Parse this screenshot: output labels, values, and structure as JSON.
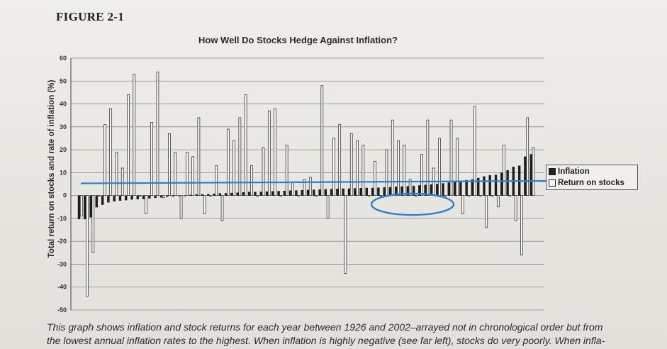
{
  "figure_label": "FIGURE 2-1",
  "caption_lines": [
    "This graph shows inflation and stock returns for each year between 1926 and 2002–arrayed not in chronological order but from",
    "the lowest annual inflation rates to the highest. When inflation is highly negative (see far left), stocks do very poorly. When infla-"
  ],
  "annotation_colors": {
    "reference_line": "#2f7fd0",
    "ellipse": "#2f7fd0"
  },
  "chart_data": {
    "type": "bar",
    "title": "How Well Do Stocks Hedge Against Inflation?",
    "ylabel": "Total return on stocks and rate of inflation (%)",
    "xlabel": "",
    "ylim": [
      -50,
      60
    ],
    "yticks": [
      60,
      50,
      40,
      30,
      20,
      10,
      0,
      -10,
      -20,
      -30,
      -40,
      -50
    ],
    "grid": true,
    "legend_position": "right",
    "series": [
      {
        "name": "Inflation",
        "fill": "#1e1e1e",
        "values": [
          -10.3,
          -10.3,
          -9.5,
          -5.1,
          -4,
          -3,
          -2.5,
          -2.2,
          -2,
          -1.7,
          -1.6,
          -1.5,
          -1.2,
          -1,
          -0.8,
          -0.5,
          -0.4,
          -0.2,
          0,
          0.2,
          0.4,
          0.5,
          0.6,
          0.7,
          0.9,
          1,
          1.1,
          1.2,
          1.4,
          1.5,
          1.5,
          1.6,
          1.7,
          1.8,
          1.9,
          2,
          2.1,
          2.2,
          2.3,
          2.4,
          2.5,
          2.6,
          2.7,
          2.8,
          2.9,
          3,
          3,
          3.1,
          3.2,
          3.3,
          3.3,
          3.4,
          3.5,
          3.6,
          3.8,
          3.9,
          4,
          4.2,
          4.4,
          4.6,
          4.8,
          5,
          5.3,
          5.6,
          6,
          6.3,
          6.7,
          7,
          7.6,
          8.3,
          8.8,
          9,
          10,
          11,
          12.5,
          13,
          17,
          18
        ]
      },
      {
        "name": "Return on stocks",
        "fill": "#f5f5f5",
        "values": [
          -9,
          -44,
          -25,
          0,
          31,
          38,
          19,
          12,
          44,
          53,
          0,
          -8,
          32,
          54,
          -1,
          27,
          19,
          -10,
          19,
          17,
          34,
          -8,
          0,
          13,
          -11,
          29,
          24,
          34,
          44,
          13,
          0,
          21,
          37,
          38,
          0,
          22,
          6,
          0,
          7,
          8,
          0,
          48,
          -10,
          25,
          31,
          -34,
          27,
          24,
          22,
          0,
          15,
          0,
          20,
          33,
          24,
          22,
          7,
          0,
          18,
          33,
          12,
          25,
          0,
          33,
          25,
          -8,
          0,
          39,
          0,
          -14,
          0,
          -5,
          22,
          0,
          -11,
          -26,
          34,
          21
        ]
      }
    ]
  }
}
